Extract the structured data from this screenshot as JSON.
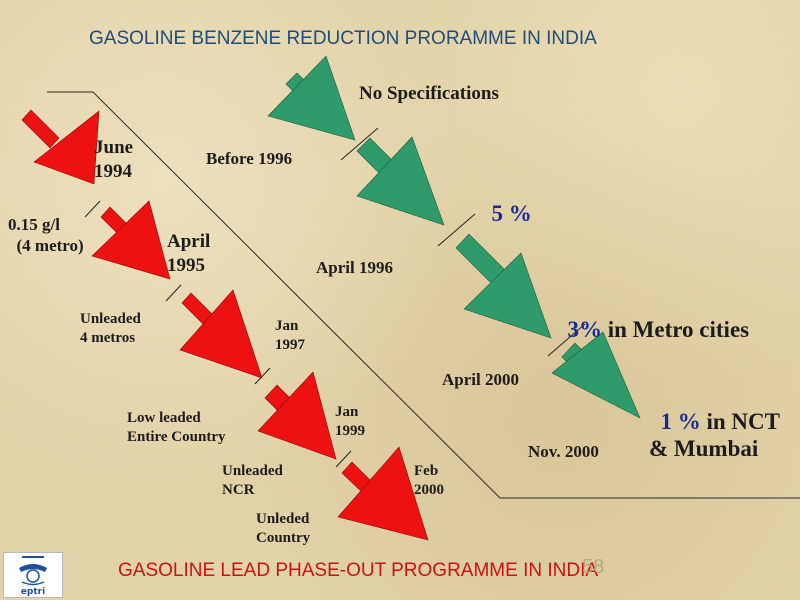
{
  "title_top": "GASOLINE BENZENE REDUCTION PRORAMME IN INDIA",
  "title_bottom": "GASOLINE LEAD PHASE-OUT PROGRAMME IN INDIA",
  "page_number": "58",
  "colors": {
    "title_top": "#1e4d7c",
    "title_bottom": "#cc1111",
    "lead_arrows": "#ee1111",
    "benzene_arrows": "#2f9a6a",
    "value_blue": "#1a2a9a",
    "label_dark": "#1c1c1c"
  },
  "logo": {
    "icon": "eptri-emblem-icon",
    "text": "eptri"
  },
  "benzene_programme": {
    "dates": [
      "Before 1996",
      "April 1996",
      "April 2000",
      "Nov. 2000"
    ],
    "specs": [
      {
        "value": "",
        "rest": "No Specifications"
      },
      {
        "value": "5 %",
        "rest": ""
      },
      {
        "value": "3%",
        "rest": " in Metro cities"
      },
      {
        "value": "1 %",
        "rest": " in NCT\n& Mumbai"
      }
    ]
  },
  "lead_programme": {
    "dates": [
      "June\n1994",
      "April\n1995",
      "Jan\n1997",
      "Jan\n1999",
      "Feb\n2000"
    ],
    "milestones": [
      "0.15 g/l\n  (4 metro)",
      "Unleaded\n4 metros",
      "Low leaded\nEntire Country",
      "Unleaded\nNCR",
      "Unleded\nCountry"
    ]
  }
}
